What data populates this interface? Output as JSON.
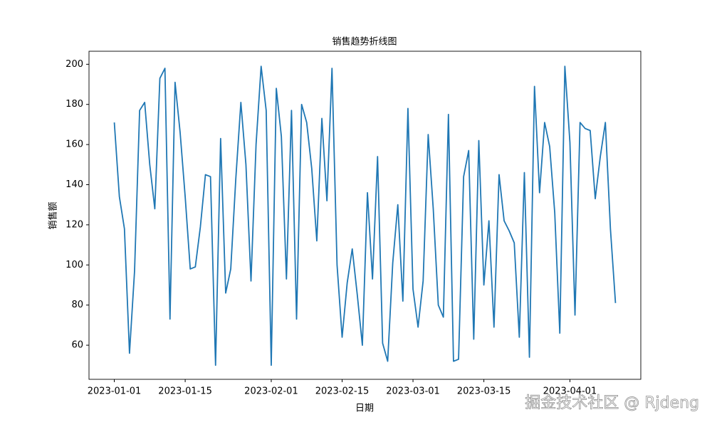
{
  "chart_data": {
    "type": "line",
    "title": "销售趋势折线图",
    "x_label": "日期",
    "y_label": "销售额",
    "x": [
      "2023-01-01",
      "2023-01-02",
      "2023-01-03",
      "2023-01-04",
      "2023-01-05",
      "2023-01-06",
      "2023-01-07",
      "2023-01-08",
      "2023-01-09",
      "2023-01-10",
      "2023-01-11",
      "2023-01-12",
      "2023-01-13",
      "2023-01-14",
      "2023-01-15",
      "2023-01-16",
      "2023-01-17",
      "2023-01-18",
      "2023-01-19",
      "2023-01-20",
      "2023-01-21",
      "2023-01-22",
      "2023-01-23",
      "2023-01-24",
      "2023-01-25",
      "2023-01-26",
      "2023-01-27",
      "2023-01-28",
      "2023-01-29",
      "2023-01-30",
      "2023-01-31",
      "2023-02-01",
      "2023-02-02",
      "2023-02-03",
      "2023-02-04",
      "2023-02-05",
      "2023-02-06",
      "2023-02-07",
      "2023-02-08",
      "2023-02-09",
      "2023-02-10",
      "2023-02-11",
      "2023-02-12",
      "2023-02-13",
      "2023-02-14",
      "2023-02-15",
      "2023-02-16",
      "2023-02-17",
      "2023-02-18",
      "2023-02-19",
      "2023-02-20",
      "2023-02-21",
      "2023-02-22",
      "2023-02-23",
      "2023-02-24",
      "2023-02-25",
      "2023-02-26",
      "2023-02-27",
      "2023-02-28",
      "2023-03-01",
      "2023-03-02",
      "2023-03-03",
      "2023-03-04",
      "2023-03-05",
      "2023-03-06",
      "2023-03-07",
      "2023-03-08",
      "2023-03-09",
      "2023-03-10",
      "2023-03-11",
      "2023-03-12",
      "2023-03-13",
      "2023-03-14",
      "2023-03-15",
      "2023-03-16",
      "2023-03-17",
      "2023-03-18",
      "2023-03-19",
      "2023-03-20",
      "2023-03-21",
      "2023-03-22",
      "2023-03-23",
      "2023-03-24",
      "2023-03-25",
      "2023-03-26",
      "2023-03-27",
      "2023-03-28",
      "2023-03-29",
      "2023-03-30",
      "2023-03-31",
      "2023-04-01",
      "2023-04-02",
      "2023-04-03",
      "2023-04-04",
      "2023-04-05",
      "2023-04-06",
      "2023-04-07",
      "2023-04-08",
      "2023-04-09",
      "2023-04-10"
    ],
    "series": [
      {
        "color": "#1f77b4",
        "values": [
          171,
          134,
          118,
          56,
          97,
          177,
          181,
          150,
          128,
          193,
          198,
          73,
          191,
          166,
          134,
          98,
          99,
          119,
          145,
          144,
          50,
          163,
          86,
          98,
          143,
          181,
          150,
          92,
          160,
          199,
          177,
          50,
          188,
          164,
          93,
          177,
          73,
          180,
          171,
          148,
          112,
          173,
          132,
          198,
          100,
          64,
          91,
          108,
          85,
          60,
          136,
          93,
          154,
          61,
          52,
          101,
          130,
          82,
          178,
          88,
          69,
          92,
          165,
          128,
          80,
          74,
          175,
          52,
          53,
          144,
          157,
          63,
          162,
          90,
          122,
          69,
          145,
          122,
          117,
          111,
          64,
          146,
          54,
          189,
          136,
          171,
          159,
          126,
          66,
          199,
          161,
          75,
          171,
          168,
          167,
          133,
          154,
          171,
          118,
          81
        ]
      }
    ],
    "xlim": [
      "2022-12-27",
      "2023-04-15"
    ],
    "xticks": [
      "2023-01-01",
      "2023-01-15",
      "2023-02-01",
      "2023-02-15",
      "2023-03-01",
      "2023-03-15",
      "2023-04-01"
    ],
    "ylim": [
      43,
      206.5
    ],
    "yticks": [
      60,
      80,
      100,
      120,
      140,
      160,
      180,
      200
    ],
    "grid": false,
    "watermark": "掘金技术社区 @ Rjdeng"
  }
}
